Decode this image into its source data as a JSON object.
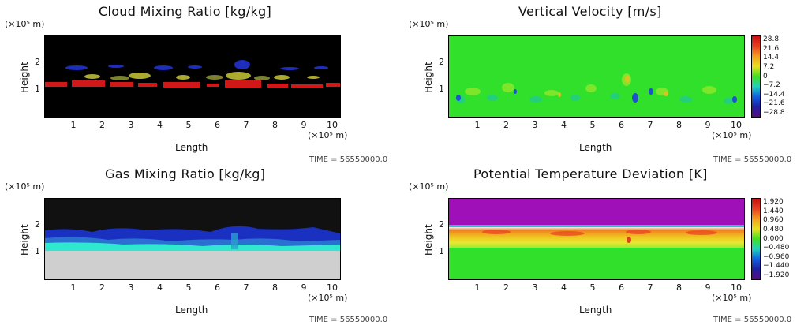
{
  "time_label": "TIME = 56550000.0",
  "chart_data": [
    {
      "type": "heatmap",
      "title": "Cloud Mixing Ratio [kg/kg]",
      "xlabel": "Length",
      "ylabel": "Height",
      "x_unit": "(×10⁵ m)",
      "y_unit": "(×10⁵ m)",
      "xlim": [
        0,
        10.3
      ],
      "ylim": [
        0,
        3
      ],
      "x_ticks": [
        "1",
        "2",
        "3",
        "4",
        "5",
        "6",
        "7",
        "8",
        "9",
        "10"
      ],
      "y_ticks": [
        "1",
        "2"
      ],
      "background": "#000000",
      "time": "TIME = 56550000.0"
    },
    {
      "type": "heatmap",
      "title": "Vertical Velocity [m/s]",
      "xlabel": "Length",
      "ylabel": "Height",
      "x_unit": "(×10⁵ m)",
      "y_unit": "(×10⁵ m)",
      "xlim": [
        0,
        10.3
      ],
      "ylim": [
        0,
        3
      ],
      "x_ticks": [
        "1",
        "2",
        "3",
        "4",
        "5",
        "6",
        "7",
        "8",
        "9",
        "10"
      ],
      "y_ticks": [
        "1",
        "2"
      ],
      "colorbar_ticks": [
        "28.8",
        "21.6",
        "14.4",
        "7.2",
        "0",
        "−7.2",
        "−14.4",
        "−21.6",
        "−28.8"
      ],
      "background": "#2ee82a",
      "time": "TIME = 56550000.0"
    },
    {
      "type": "heatmap",
      "title": "Gas Mixing Ratio [kg/kg]",
      "xlabel": "Length",
      "ylabel": "Height",
      "x_unit": "(×10⁵ m)",
      "y_unit": "(×10⁵ m)",
      "xlim": [
        0,
        10.3
      ],
      "ylim": [
        0,
        3
      ],
      "x_ticks": [
        "1",
        "2",
        "3",
        "4",
        "5",
        "6",
        "7",
        "8",
        "9",
        "10"
      ],
      "y_ticks": [
        "1",
        "2"
      ],
      "background": "#111111",
      "time": "TIME = 56550000.0"
    },
    {
      "type": "heatmap",
      "title": "Potential Temperature Deviation [K]",
      "xlabel": "Length",
      "ylabel": "Height",
      "x_unit": "(×10⁵ m)",
      "y_unit": "(×10⁵ m)",
      "xlim": [
        0,
        10.3
      ],
      "ylim": [
        0,
        3
      ],
      "x_ticks": [
        "1",
        "2",
        "3",
        "4",
        "5",
        "6",
        "7",
        "8",
        "9",
        "10"
      ],
      "y_ticks": [
        "1",
        "2"
      ],
      "colorbar_ticks": [
        "1.920",
        "1.440",
        "0.960",
        "0.480",
        "0.000",
        "−0.480",
        "−0.960",
        "−1.440",
        "−1.920"
      ],
      "background": "#2ee82a",
      "time": "TIME = 56550000.0"
    }
  ]
}
